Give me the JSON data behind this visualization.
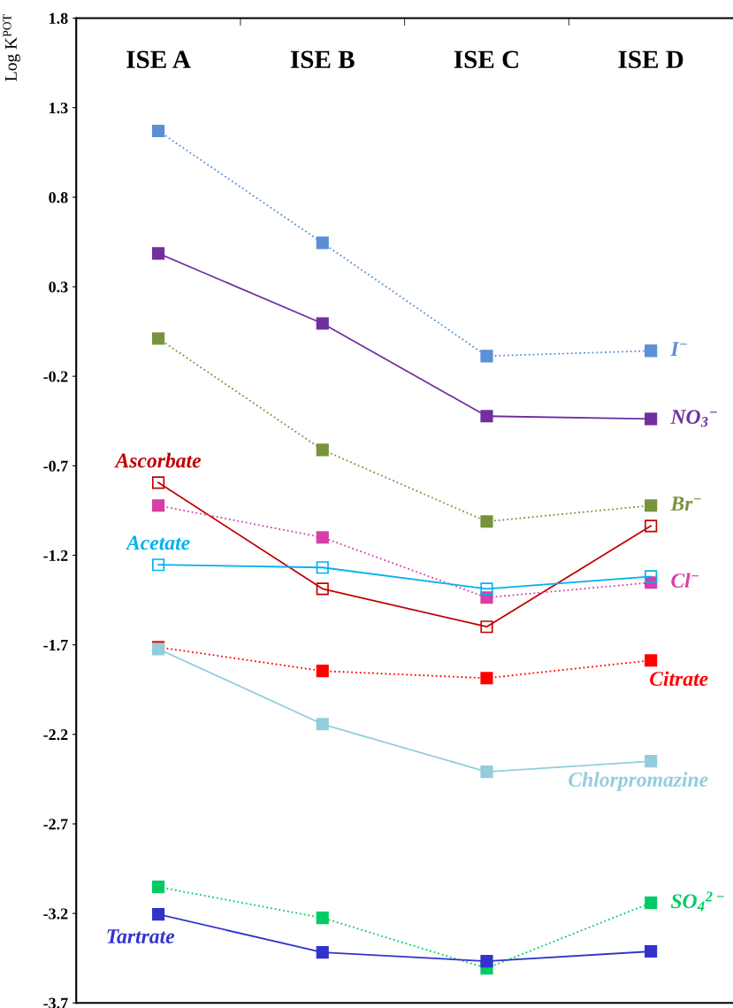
{
  "chart_data": {
    "type": "line",
    "ylabel": "Log K$^{POT}$",
    "categories": [
      "ISE A",
      "ISE B",
      "ISE C",
      "ISE D"
    ],
    "ylim": [
      -3.7,
      1.8
    ],
    "yticks": [
      1.8,
      1.3,
      0.8,
      0.3,
      -0.2,
      -0.7,
      -1.2,
      -1.7,
      -2.2,
      -2.7,
      -3.2,
      -3.7
    ],
    "grid": false,
    "marker": "square",
    "legend": "right",
    "series": [
      {
        "name": "I$^{−}$",
        "color": "#5b8fd6",
        "line_style": "dotted",
        "values": [
          1.17,
          0.545,
          -0.087,
          -0.058
        ]
      },
      {
        "name": "NO$_{3}$$^{−}$",
        "color": "#7030a0",
        "line_style": "solid",
        "values": [
          0.486,
          0.095,
          -0.423,
          -0.438
        ]
      },
      {
        "name": "Br$^{−}$",
        "color": "#77933c",
        "line_style": "dotted",
        "values": [
          0.011,
          -0.611,
          -1.011,
          -0.922
        ]
      },
      {
        "name": "Ascorbate",
        "color": "#c00000",
        "line_style": "solid",
        "values": [
          -0.794,
          -1.387,
          -1.599,
          -1.036
        ]
      },
      {
        "name": "Cl$^{−}$",
        "color": "#d63fa8",
        "line_style": "dotted",
        "values": [
          -0.922,
          -1.1,
          -1.436,
          -1.352
        ]
      },
      {
        "name": "Acetate",
        "color": "#00b0f0",
        "line_style": "solid",
        "values": [
          -1.253,
          -1.268,
          -1.387,
          -1.318
        ]
      },
      {
        "name": "Citrate",
        "color": "#ff0000",
        "line_style": "dotted",
        "values": [
          -1.713,
          -1.846,
          -1.886,
          -1.787
        ]
      },
      {
        "name": "Chlorpromazine",
        "color": "#92cddc",
        "line_style": "solid",
        "values": [
          -1.723,
          -2.143,
          -2.409,
          -2.35
        ]
      },
      {
        "name": "SO$_{4}$$^{2−}$",
        "color": "#00cc66",
        "line_style": "dotted",
        "values": [
          -3.052,
          -3.225,
          -3.506,
          -3.141
        ]
      },
      {
        "name": "Tartrate",
        "color": "#3333cc",
        "line_style": "solid",
        "values": [
          -3.205,
          -3.417,
          -3.467,
          -3.412
        ]
      }
    ]
  }
}
